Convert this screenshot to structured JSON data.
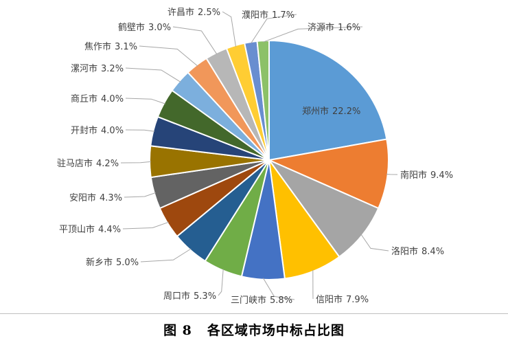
{
  "figure": {
    "number": "图 8",
    "caption": "各区域市场中标占比图"
  },
  "chart_data": {
    "type": "pie",
    "start_angle_deg": 0,
    "direction": "clockwise",
    "slices": [
      {
        "name": "郑州市",
        "value": 22.2,
        "label": "22.2%",
        "color": "#5B9BD5"
      },
      {
        "name": "南阳市",
        "value": 9.4,
        "label": "9.4%",
        "color": "#ED7D31"
      },
      {
        "name": "洛阳市",
        "value": 8.4,
        "label": "8.4%",
        "color": "#A5A5A5"
      },
      {
        "name": "信阳市",
        "value": 7.9,
        "label": "7.9%",
        "color": "#FFC000"
      },
      {
        "name": "三门峡市",
        "value": 5.8,
        "label": "5.8%",
        "color": "#4472C4"
      },
      {
        "name": "周口市",
        "value": 5.3,
        "label": "5.3%",
        "color": "#70AD47"
      },
      {
        "name": "新乡市",
        "value": 5.0,
        "label": "5.0%",
        "color": "#255E91"
      },
      {
        "name": "平顶山市",
        "value": 4.4,
        "label": "4.4%",
        "color": "#9E480E"
      },
      {
        "name": "安阳市",
        "value": 4.3,
        "label": "4.3%",
        "color": "#636363"
      },
      {
        "name": "驻马店市",
        "value": 4.2,
        "label": "4.2%",
        "color": "#997300"
      },
      {
        "name": "开封市",
        "value": 4.0,
        "label": "4.0%",
        "color": "#264478"
      },
      {
        "name": "商丘市",
        "value": 4.0,
        "label": "4.0%",
        "color": "#43682B"
      },
      {
        "name": "漯河市",
        "value": 3.2,
        "label": "3.2%",
        "color": "#7CAFDD"
      },
      {
        "name": "焦作市",
        "value": 3.1,
        "label": "3.1%",
        "color": "#F1975A"
      },
      {
        "name": "鹤壁市",
        "value": 3.0,
        "label": "3.0%",
        "color": "#B7B7B7"
      },
      {
        "name": "许昌市",
        "value": 2.5,
        "label": "2.5%",
        "color": "#FFCD33"
      },
      {
        "name": "濮阳市",
        "value": 1.7,
        "label": "1.7%",
        "color": "#698ED0"
      },
      {
        "name": "济源市",
        "value": 1.6,
        "label": "1.6%",
        "color": "#8CC168"
      }
    ]
  }
}
